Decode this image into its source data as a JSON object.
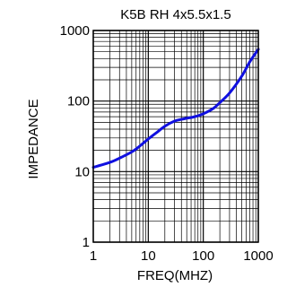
{
  "chart_data": {
    "type": "line",
    "title": "K5B RH 4x5.5x1.5",
    "xlabel": "FREQ(MHZ)",
    "ylabel": "IMPEDANCE",
    "xscale": "log",
    "yscale": "log",
    "xlim": [
      1,
      1000
    ],
    "ylim": [
      1,
      1000
    ],
    "grid": true,
    "x_ticks": [
      {
        "value": 1,
        "label": "1"
      },
      {
        "value": 10,
        "label": "10"
      },
      {
        "value": 100,
        "label": "100"
      },
      {
        "value": 1000,
        "label": "1000"
      }
    ],
    "y_ticks": [
      {
        "value": 1,
        "label": "1"
      },
      {
        "value": 10,
        "label": "10"
      },
      {
        "value": 100,
        "label": "100"
      },
      {
        "value": 1000,
        "label": "1000"
      }
    ],
    "series": [
      {
        "color": "#1010e0",
        "x": [
          1,
          2,
          3,
          5,
          7,
          10,
          15,
          20,
          30,
          40,
          50,
          70,
          100,
          150,
          200,
          300,
          500,
          700,
          1000
        ],
        "y": [
          11.5,
          13.5,
          15.5,
          19,
          23,
          29,
          37,
          44,
          52,
          55,
          57,
          60,
          66,
          78,
          95,
          130,
          225,
          360,
          540
        ]
      }
    ]
  }
}
